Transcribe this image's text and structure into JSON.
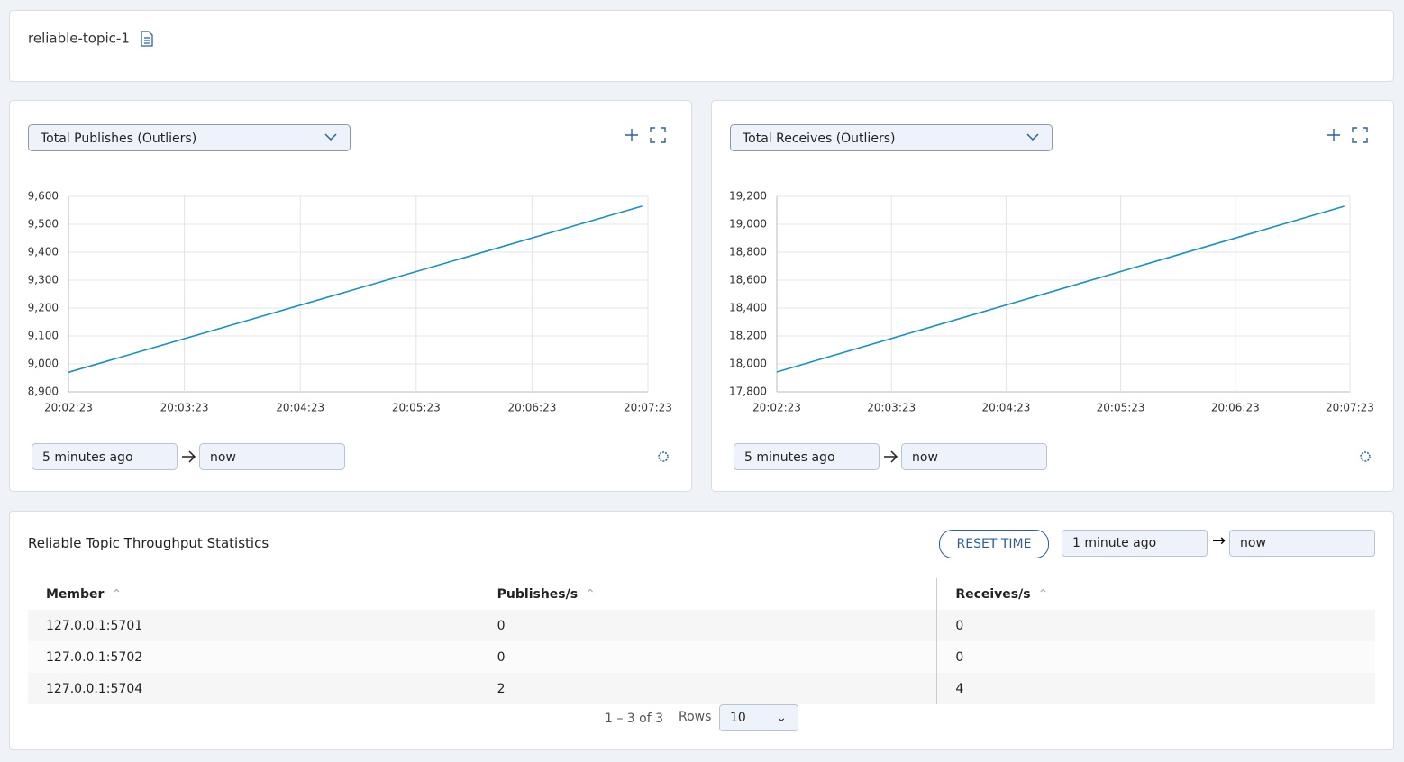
{
  "header": {
    "title": "reliable-topic-1"
  },
  "chart_data": [
    {
      "type": "line",
      "title": "Total Publishes (Outliers)",
      "x": [
        "20:02:23",
        "20:07:20"
      ],
      "series": [
        {
          "name": "Total Publishes",
          "color": "#1b8fc7",
          "values": [
            8970,
            9565
          ]
        }
      ],
      "xlim": [
        "20:02:23",
        "20:07:23"
      ],
      "xticks": [
        "20:02:23",
        "20:03:23",
        "20:04:23",
        "20:05:23",
        "20:06:23",
        "20:07:23"
      ],
      "ylim": [
        8900,
        9600
      ],
      "yticks": [
        {
          "value": 8900,
          "label": "8,900"
        },
        {
          "value": 9000,
          "label": "9,000"
        },
        {
          "value": 9100,
          "label": "9,100"
        },
        {
          "value": 9200,
          "label": "9,200"
        },
        {
          "value": 9300,
          "label": "9,300"
        },
        {
          "value": 9400,
          "label": "9,400"
        },
        {
          "value": 9500,
          "label": "9,500"
        },
        {
          "value": 9600,
          "label": "9,600"
        }
      ],
      "grid": true,
      "time_from": "5 minutes ago",
      "time_to": "now"
    },
    {
      "type": "line",
      "title": "Total Receives (Outliers)",
      "x": [
        "20:02:23",
        "20:07:20"
      ],
      "series": [
        {
          "name": "Total Receives",
          "color": "#1b8fc7",
          "values": [
            17942,
            19129
          ]
        }
      ],
      "xlim": [
        "20:02:23",
        "20:07:23"
      ],
      "xticks": [
        "20:02:23",
        "20:03:23",
        "20:04:23",
        "20:05:23",
        "20:06:23",
        "20:07:23"
      ],
      "ylim": [
        17800,
        19200
      ],
      "yticks": [
        {
          "value": 17800,
          "label": "17,800"
        },
        {
          "value": 18000,
          "label": "18,000"
        },
        {
          "value": 18200,
          "label": "18,200"
        },
        {
          "value": 18400,
          "label": "18,400"
        },
        {
          "value": 18600,
          "label": "18,600"
        },
        {
          "value": 18800,
          "label": "18,800"
        },
        {
          "value": 19000,
          "label": "19,000"
        },
        {
          "value": 19200,
          "label": "19,200"
        }
      ],
      "grid": true,
      "time_from": "5 minutes ago",
      "time_to": "now"
    }
  ],
  "table": {
    "title": "Reliable Topic Throughput Statistics",
    "reset": "RESET TIME",
    "time_from": "1 minute ago",
    "time_to": "now",
    "columns": [
      "Member",
      "Publishes/s",
      "Receives/s"
    ],
    "rows": [
      [
        "127.0.0.1:5701",
        0,
        0
      ],
      [
        "127.0.0.1:5702",
        0,
        0
      ],
      [
        "127.0.0.1:5704",
        2,
        4
      ]
    ],
    "pagination": "1 – 3 of 3",
    "rows_label": "Rows",
    "rows_value": "10"
  }
}
